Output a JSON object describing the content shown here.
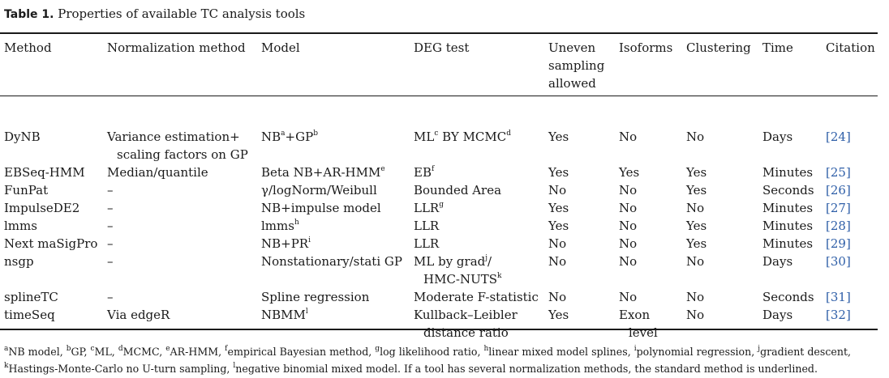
{
  "caption": {
    "label": "Table 1.",
    "text": "Properties of available TC analysis tools"
  },
  "headers": [
    "Method",
    "Normalization method",
    "Model",
    "DEG test",
    "Uneven sampling allowed",
    "Isoforms",
    "Clustering",
    "Time",
    "Citation"
  ],
  "rows": [
    {
      "method": "DyNB",
      "norm": [
        "Variance estimation+",
        "scaling factors on GP"
      ],
      "model": [
        {
          "t": "NB"
        },
        {
          "s": "a"
        },
        {
          "t": "+GP"
        },
        {
          "s": "b"
        }
      ],
      "deg": [
        [
          {
            "t": "ML"
          },
          {
            "s": "c"
          },
          {
            "t": " BY MCMC"
          },
          {
            "s": "d"
          }
        ]
      ],
      "uneven": "Yes",
      "isoforms": [
        "No"
      ],
      "clustering": "No",
      "time": "Days",
      "citation": "[24]"
    },
    {
      "method": "EBSeq-HMM",
      "norm": [
        "Median/quantile"
      ],
      "model": [
        {
          "t": "Beta NB+AR-HMM"
        },
        {
          "s": "e"
        }
      ],
      "deg": [
        [
          {
            "t": "EB"
          },
          {
            "s": "f"
          }
        ]
      ],
      "uneven": "Yes",
      "isoforms": [
        "Yes"
      ],
      "clustering": "Yes",
      "time": "Minutes",
      "citation": "[25]"
    },
    {
      "method": "FunPat",
      "norm": [
        "–"
      ],
      "model": [
        {
          "t": "γ/logNorm/Weibull"
        }
      ],
      "deg": [
        [
          {
            "t": "Bounded Area"
          }
        ]
      ],
      "uneven": "No",
      "isoforms": [
        "No"
      ],
      "clustering": "Yes",
      "time": "Seconds",
      "citation": "[26]"
    },
    {
      "method": "ImpulseDE2",
      "norm": [
        "–"
      ],
      "model": [
        {
          "t": "NB+impulse model"
        }
      ],
      "deg": [
        [
          {
            "t": "LLR"
          },
          {
            "s": "g"
          }
        ]
      ],
      "uneven": "Yes",
      "isoforms": [
        "No"
      ],
      "clustering": "No",
      "time": "Minutes",
      "citation": "[27]"
    },
    {
      "method": "lmms",
      "norm": [
        "–"
      ],
      "model": [
        {
          "t": "lmms"
        },
        {
          "s": "h"
        }
      ],
      "deg": [
        [
          {
            "t": "LLR"
          }
        ]
      ],
      "uneven": "Yes",
      "isoforms": [
        "No"
      ],
      "clustering": "Yes",
      "time": "Minutes",
      "citation": "[28]"
    },
    {
      "method": "Next maSigPro",
      "norm": [
        "–"
      ],
      "model": [
        {
          "t": "NB+PR"
        },
        {
          "s": "i"
        }
      ],
      "deg": [
        [
          {
            "t": "LLR"
          }
        ]
      ],
      "uneven": "No",
      "isoforms": [
        "No"
      ],
      "clustering": "Yes",
      "time": "Minutes",
      "citation": "[29]"
    },
    {
      "method": "nsgp",
      "norm": [
        "–"
      ],
      "model": [
        {
          "t": "Nonstationary/stati GP"
        }
      ],
      "deg": [
        [
          {
            "t": "ML by grad"
          },
          {
            "s": "j"
          },
          {
            "t": "/"
          }
        ],
        [
          {
            "t": "HMC-NUTS"
          },
          {
            "s": "k"
          }
        ]
      ],
      "uneven": "No",
      "isoforms": [
        "No"
      ],
      "clustering": "No",
      "time": "Days",
      "citation": "[30]"
    },
    {
      "method": "splineTC",
      "norm": [
        "–"
      ],
      "model": [
        {
          "t": "Spline regression"
        }
      ],
      "deg": [
        [
          {
            "t": "Moderate F-statistic"
          }
        ]
      ],
      "uneven": "No",
      "isoforms": [
        "No"
      ],
      "clustering": "No",
      "time": "Seconds",
      "citation": "[31]"
    },
    {
      "method": "timeSeq",
      "norm": [
        "Via edgeR"
      ],
      "model": [
        {
          "t": "NBMM"
        },
        {
          "s": "l"
        }
      ],
      "deg": [
        [
          {
            "t": "Kullback–Leibler"
          }
        ],
        [
          {
            "t": "distance ratio"
          }
        ]
      ],
      "uneven": "Yes",
      "isoforms": [
        "Exon",
        "level"
      ],
      "clustering": "No",
      "time": "Days",
      "citation": "[32]"
    }
  ],
  "footnotes": [
    [
      {
        "s": "a"
      },
      {
        "t": "NB model, "
      },
      {
        "s": "b"
      },
      {
        "t": "GP, "
      },
      {
        "s": "c"
      },
      {
        "t": "ML, "
      },
      {
        "s": "d"
      },
      {
        "t": "MCMC, "
      },
      {
        "s": "e"
      },
      {
        "t": "AR-HMM, "
      },
      {
        "s": "f"
      },
      {
        "t": "empirical Bayesian method, "
      },
      {
        "s": "g"
      },
      {
        "t": "log likelihood ratio, "
      },
      {
        "s": "h"
      },
      {
        "t": "linear mixed model splines, "
      },
      {
        "s": "i"
      },
      {
        "t": "polynomial regression, "
      },
      {
        "s": "j"
      },
      {
        "t": "gradient descent,"
      }
    ],
    [
      {
        "s": "k"
      },
      {
        "t": "Hastings-Monte-Carlo no U-turn sampling, "
      },
      {
        "s": "l"
      },
      {
        "t": "negative binomial mixed model. If a tool has several normalization methods, the standard method is underlined."
      }
    ]
  ],
  "colors": {
    "citation_link": "#2f5fa8",
    "text": "#1a1a1a"
  }
}
